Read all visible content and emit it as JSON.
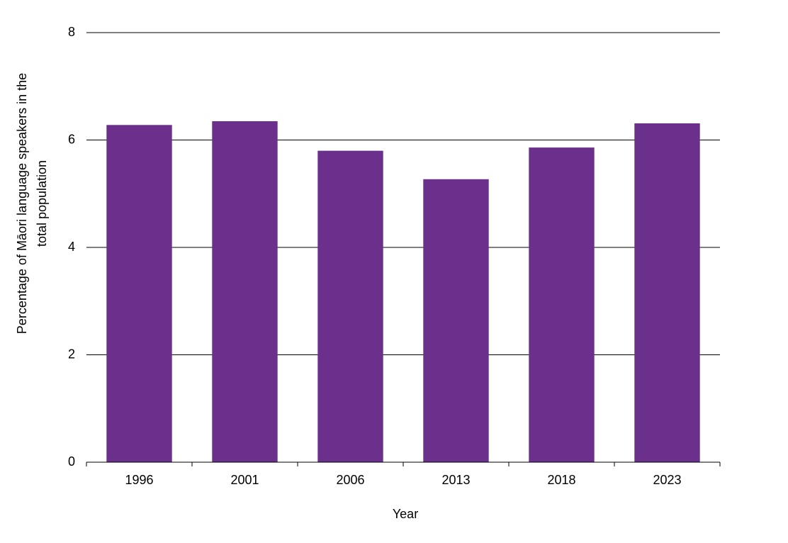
{
  "chart_data": {
    "type": "bar",
    "categories": [
      "1996",
      "2001",
      "2006",
      "2013",
      "2018",
      "2023"
    ],
    "values": [
      6.28,
      6.35,
      5.8,
      5.27,
      5.86,
      6.31
    ],
    "color": "#6b2f8c",
    "x_label": "Year",
    "y_label": [
      "Percentage of Māori language  speakers in the",
      "total population"
    ],
    "ylim": [
      0,
      8
    ],
    "yticks": [
      0,
      2,
      4,
      6,
      8
    ],
    "grid": true
  }
}
